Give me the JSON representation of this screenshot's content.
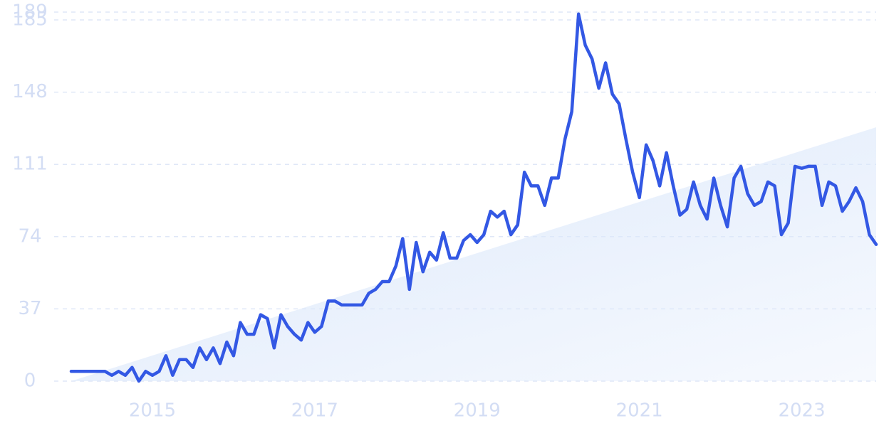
{
  "chart_data": {
    "type": "line",
    "categories": [
      null,
      null,
      null,
      null,
      null,
      null,
      null,
      null,
      null,
      null,
      null,
      null,
      "2015",
      null,
      null,
      null,
      null,
      null,
      null,
      null,
      null,
      null,
      null,
      null,
      null,
      null,
      null,
      null,
      null,
      null,
      null,
      null,
      null,
      null,
      null,
      null,
      "2017",
      null,
      null,
      null,
      null,
      null,
      null,
      null,
      null,
      null,
      null,
      null,
      null,
      null,
      null,
      null,
      null,
      null,
      null,
      null,
      null,
      null,
      null,
      null,
      "2019",
      null,
      null,
      null,
      null,
      null,
      null,
      null,
      null,
      null,
      null,
      null,
      null,
      null,
      null,
      null,
      null,
      null,
      null,
      null,
      null,
      null,
      null,
      null,
      "2021",
      null,
      null,
      null,
      null,
      null,
      null,
      null,
      null,
      null,
      null,
      null,
      null,
      null,
      null,
      null,
      null,
      null,
      null,
      null,
      null,
      null,
      null,
      null,
      "2023",
      null,
      null,
      null,
      null,
      null,
      null,
      null,
      null,
      null,
      null,
      null
    ],
    "values": [
      5,
      5,
      5,
      5,
      5,
      5,
      3,
      5,
      3,
      7,
      0,
      5,
      3,
      5,
      13,
      3,
      11,
      11,
      7,
      17,
      11,
      17,
      9,
      20,
      13,
      30,
      24,
      24,
      34,
      32,
      17,
      34,
      28,
      24,
      21,
      30,
      25,
      28,
      41,
      41,
      39,
      39,
      39,
      39,
      45,
      47,
      51,
      51,
      59,
      73,
      47,
      71,
      56,
      66,
      62,
      76,
      63,
      63,
      72,
      75,
      71,
      75,
      87,
      84,
      87,
      75,
      80,
      107,
      100,
      100,
      90,
      104,
      104,
      124,
      138,
      188,
      172,
      165,
      150,
      163,
      147,
      142,
      124,
      107,
      94,
      121,
      113,
      100,
      117,
      100,
      85,
      88,
      102,
      90,
      83,
      104,
      90,
      79,
      104,
      110,
      96,
      90,
      92,
      102,
      100,
      75,
      81,
      110,
      109,
      110,
      110,
      90,
      102,
      100,
      87,
      92,
      99,
      92,
      75,
      70
    ],
    "color": "#3358e4",
    "trend": {
      "values": [
        0,
        130
      ],
      "color": "#dce8fb"
    },
    "ylim": [
      0,
      189
    ],
    "yticks": [
      0,
      37,
      74,
      111,
      148,
      185,
      189
    ],
    "grid": true
  }
}
